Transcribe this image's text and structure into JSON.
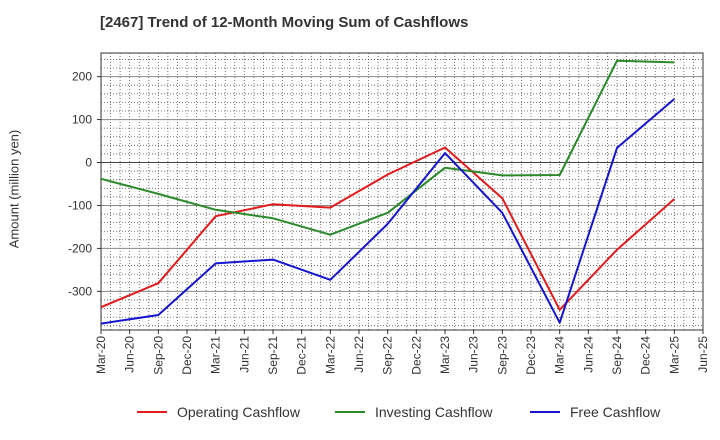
{
  "chart_data": {
    "type": "line",
    "title": "[2467]  Trend of 12-Month Moving Sum of Cashflows",
    "ylabel": "Amount (million yen)",
    "xlabel": "",
    "ylim": [
      -390,
      255
    ],
    "yticks": [
      200,
      100,
      0,
      -100,
      -200,
      -300
    ],
    "x_labels": [
      "Mar-20",
      "Jun-20",
      "Sep-20",
      "Dec-20",
      "Mar-21",
      "Jun-21",
      "Sep-21",
      "Dec-21",
      "Mar-22",
      "Jun-22",
      "Sep-22",
      "Dec-22",
      "Mar-23",
      "Jun-23",
      "Sep-23",
      "Dec-23",
      "Mar-24",
      "Jun-24",
      "Sep-24",
      "Dec-24",
      "Mar-25",
      "Jun-25"
    ],
    "grid": true,
    "legend_position": "bottom",
    "series": [
      {
        "name": "Operating Cashflow",
        "color": "#e41a1c",
        "x": [
          "Mar-20",
          "Sep-20",
          "Mar-21",
          "Sep-21",
          "Mar-22",
          "Sep-22",
          "Mar-23",
          "Sep-23",
          "Mar-24",
          "Sep-24",
          "Mar-25"
        ],
        "values": [
          -337,
          -281,
          -125,
          -97,
          -105,
          -28,
          35,
          -83,
          -343,
          -203,
          -85
        ]
      },
      {
        "name": "Investing Cashflow",
        "color": "#2a8a2a",
        "x": [
          "Mar-20",
          "Sep-20",
          "Mar-21",
          "Sep-21",
          "Mar-22",
          "Sep-22",
          "Mar-23",
          "Sep-23",
          "Mar-24",
          "Sep-24",
          "Mar-25"
        ],
        "values": [
          -38,
          -73,
          -110,
          -130,
          -168,
          -117,
          -12,
          -30,
          -29,
          237,
          233
        ]
      },
      {
        "name": "Free Cashflow",
        "color": "#1515d0",
        "x": [
          "Mar-20",
          "Sep-20",
          "Mar-21",
          "Sep-21",
          "Mar-22",
          "Sep-22",
          "Mar-23",
          "Sep-23",
          "Mar-24",
          "Sep-24",
          "Mar-25"
        ],
        "values": [
          -375,
          -355,
          -235,
          -226,
          -273,
          -143,
          22,
          -117,
          -373,
          34,
          148
        ]
      }
    ]
  }
}
